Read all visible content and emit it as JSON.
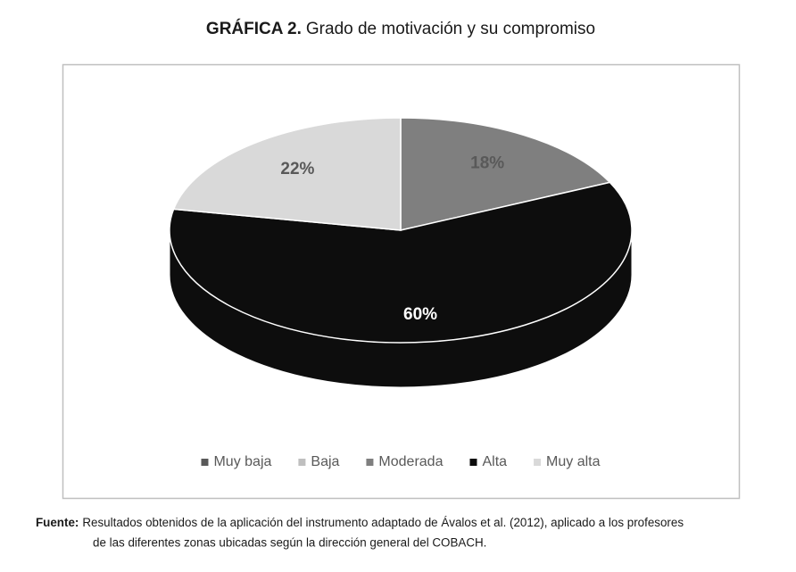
{
  "chart_data": {
    "type": "pie3d",
    "title_label": "GRÁFICA 2.",
    "title": "Grado de motivación y su compromiso",
    "categories": [
      "Muy baja",
      "Baja",
      "Moderada",
      "Alta",
      "Muy alta"
    ],
    "values": [
      0,
      0,
      18,
      60,
      22
    ],
    "value_labels": [
      null,
      null,
      "18%",
      "60%",
      "22%"
    ],
    "colors": [
      "#595959",
      "#bfbfbf",
      "#7f7f7f",
      "#0d0d0d",
      "#d9d9d9"
    ],
    "label_colors": [
      "#595959",
      "#595959",
      "#595959",
      "#ffffff",
      "#595959"
    ],
    "legend": "bottom",
    "source_label": "Fuente:",
    "source_lines": [
      "Resultados obtenidos de la aplicación del instrumento adaptado de Ávalos et al. (2012), aplicado a los profesores",
      "de las diferentes zonas ubicadas según la dirección general del COBACH."
    ]
  }
}
